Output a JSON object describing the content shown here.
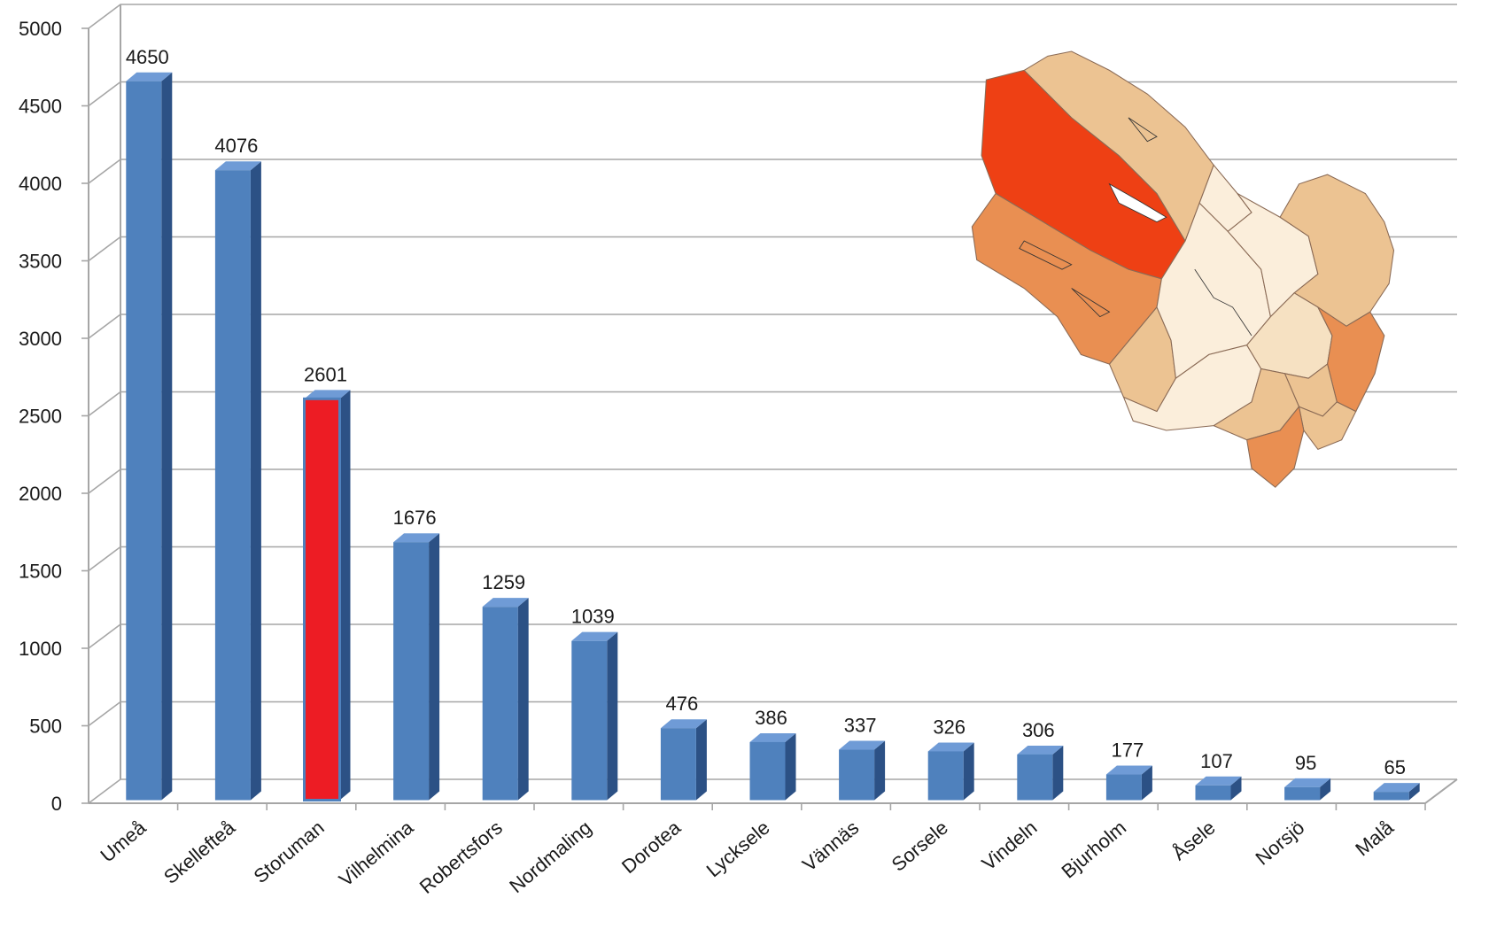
{
  "chart_data": {
    "type": "bar",
    "title": "",
    "xlabel": "",
    "ylabel": "",
    "ylim": [
      0,
      5000
    ],
    "yticks": [
      0,
      500,
      1000,
      1500,
      2000,
      2500,
      3000,
      3500,
      4000,
      4500,
      5000
    ],
    "grid": true,
    "style": "3d-column",
    "categories": [
      "Umeå",
      "Skellefteå",
      "Storuman",
      "Vilhelmina",
      "Robertsfors",
      "Nordmaling",
      "Dorotea",
      "Lycksele",
      "Vännäs",
      "Sorsele",
      "Vindeln",
      "Bjurholm",
      "Åsele",
      "Norsjö",
      "Malå"
    ],
    "values": [
      4650,
      4076,
      2601,
      1676,
      1259,
      1039,
      476,
      386,
      337,
      326,
      306,
      177,
      107,
      95,
      65
    ],
    "data_labels": true,
    "bar_color": "#4f81bd",
    "highlight": {
      "category": "Storuman",
      "color": "#ed1c24"
    },
    "inset": "choropleth-map-of-vasterbotten-municipalities"
  },
  "colors": {
    "grid": "#a6a6a6",
    "bar_top": "#6f9bd6",
    "bar_side": "#2c5185",
    "highlight_side": "#2c5185",
    "map_dark": "#ee4014",
    "map_mid": "#e98f52",
    "map_light": "#ecc392",
    "map_pale": "#f6e1c2",
    "map_faint": "#fbeedb"
  }
}
